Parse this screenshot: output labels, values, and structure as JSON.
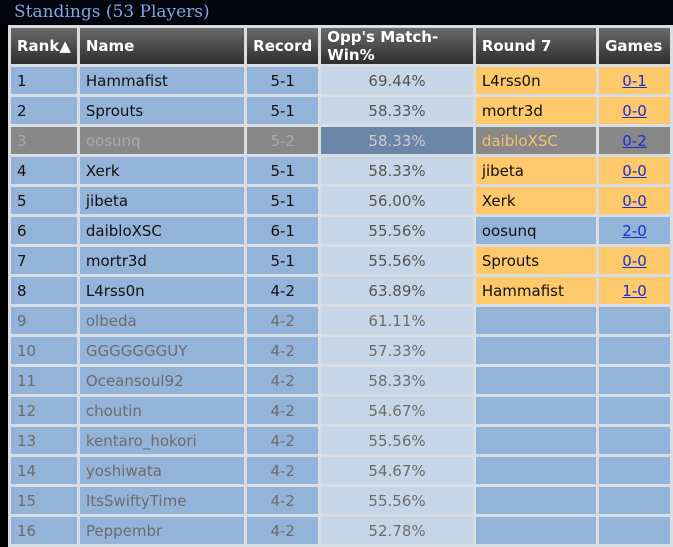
{
  "header": {
    "title": "Standings (53 Players)"
  },
  "table": {
    "columns": [
      "Rank▲",
      "Name",
      "Record",
      "Opp's Match-Win%",
      "Round 7",
      "Games"
    ],
    "rows": [
      [
        "1",
        "Hammafist",
        "5-1",
        "69.44%",
        "L4rss0n",
        "0-1"
      ],
      [
        "2",
        "Sprouts",
        "5-1",
        "58.33%",
        "mortr3d",
        "0-0"
      ],
      [
        "3",
        "oosunq",
        "5-2",
        "58.33%",
        "daibloXSC",
        "0-2"
      ],
      [
        "4",
        "Xerk",
        "5-1",
        "58.33%",
        "jibeta",
        "0-0"
      ],
      [
        "5",
        "jibeta",
        "5-1",
        "56.00%",
        "Xerk",
        "0-0"
      ],
      [
        "6",
        "daibloXSC",
        "6-1",
        "55.56%",
        "oosunq",
        "2-0"
      ],
      [
        "7",
        "mortr3d",
        "5-1",
        "55.56%",
        "Sprouts",
        "0-0"
      ],
      [
        "8",
        "L4rss0n",
        "4-2",
        "63.89%",
        "Hammafist",
        "1-0"
      ],
      [
        "9",
        "olbeda",
        "4-2",
        "61.11%"
      ],
      [
        "10",
        "GGGGGGGUY",
        "4-2",
        "57.33%"
      ],
      [
        "11",
        "Oceansoul92",
        "4-2",
        "58.33%"
      ],
      [
        "12",
        "choutin",
        "4-2",
        "54.67%"
      ],
      [
        "13",
        "kentaro_hokori",
        "4-2",
        "55.56%"
      ],
      [
        "14",
        "yoshiwata",
        "4-2",
        "54.67%"
      ],
      [
        "15",
        "ItsSwiftyTime",
        "4-2",
        "55.56%"
      ],
      [
        "16",
        "Peppembr",
        "4-2",
        "52.78%"
      ]
    ]
  }
}
